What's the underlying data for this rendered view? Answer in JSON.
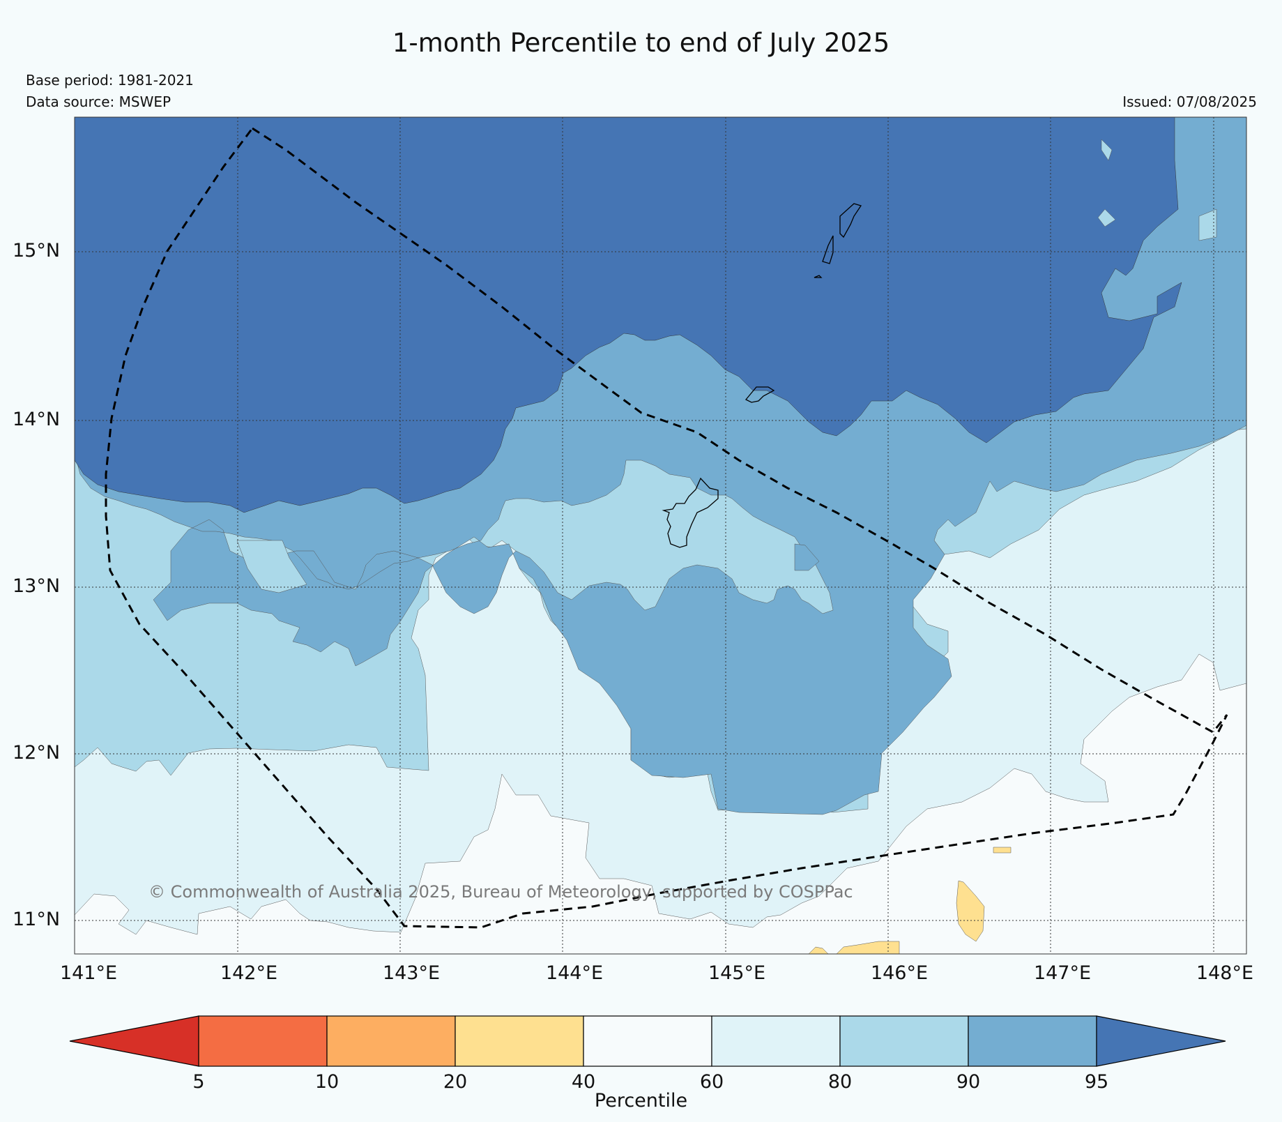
{
  "title": "1-month Percentile to end of July 2025",
  "base_period": "Base period: 1981-2021",
  "data_source": "Data source: MSWEP",
  "issued": "Issued: 07/08/2025",
  "copyright": "© Commonwealth of Australia 2025, Bureau of Meteorology, supported by COSPPac",
  "latitude_labels": [
    "15°N",
    "14°N",
    "13°N",
    "12°N",
    "11°N"
  ],
  "longitude_labels": [
    "141°E",
    "142°E",
    "143°E",
    "144°E",
    "145°E",
    "146°E",
    "147°E",
    "148°E"
  ],
  "colorbar": {
    "label": "Percentile",
    "ticks": [
      "5",
      "10",
      "20",
      "40",
      "60",
      "80",
      "90",
      "95"
    ],
    "colors": [
      "#d73027",
      "#f46d43",
      "#fdae61",
      "#fee090",
      "#f7fbfc",
      "#e0f3f8",
      "#abd9e9",
      "#74add1",
      "#4575b4"
    ]
  },
  "legend_colors": {
    "below_5": "#d73027",
    "p5_10": "#f46d43",
    "p10_20": "#fdae61",
    "p20_40": "#fee090",
    "p40_60": "#f7fbfc",
    "p60_80": "#e0f3f8",
    "p80_90": "#abd9e9",
    "p90_95": "#74add1",
    "above_95": "#4575b4"
  },
  "map_extent": {
    "lon": [
      141,
      148.2
    ],
    "lat": [
      10.8,
      15.8
    ]
  }
}
